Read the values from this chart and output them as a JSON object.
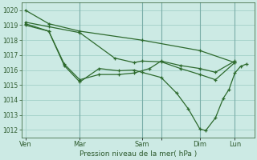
{
  "bg_color": "#cceae4",
  "grid_color": "#a8d4cc",
  "line_color": "#2d6a2d",
  "xlabel": "Pression niveau de la mer( hPa )",
  "ylim": [
    1011.5,
    1020.5
  ],
  "yticks": [
    1012,
    1013,
    1014,
    1015,
    1016,
    1017,
    1018,
    1019,
    1020
  ],
  "xlim": [
    0,
    120
  ],
  "xtick_positions": [
    2,
    30,
    62,
    72,
    92,
    110
  ],
  "xtick_labels": [
    "Ven",
    "Mar",
    "Sam",
    "",
    "Dim",
    "Lun"
  ],
  "vlines": [
    30,
    62,
    72,
    92,
    110
  ],
  "series": [
    [
      2,
      1020.0,
      14,
      1019.1,
      30,
      1018.6,
      62,
      1018.0,
      92,
      1017.3,
      110,
      1016.5
    ],
    [
      2,
      1019.2,
      14,
      1018.9,
      30,
      1018.5,
      48,
      1016.8,
      58,
      1016.5,
      62,
      1016.6,
      72,
      1016.55,
      82,
      1016.1,
      92,
      1015.7,
      100,
      1015.35,
      110,
      1016.5
    ],
    [
      2,
      1019.0,
      14,
      1018.6,
      22,
      1016.4,
      30,
      1015.35,
      40,
      1015.7,
      50,
      1015.7,
      58,
      1015.8,
      66,
      1016.1,
      72,
      1016.6,
      82,
      1016.3,
      92,
      1016.1,
      100,
      1015.85,
      110,
      1016.6
    ],
    [
      2,
      1019.1,
      14,
      1018.6,
      22,
      1016.3,
      30,
      1015.2,
      40,
      1016.1,
      50,
      1015.95,
      58,
      1016.0,
      62,
      1015.85,
      72,
      1015.5,
      80,
      1014.45,
      86,
      1013.4,
      92,
      1012.05,
      95,
      1011.95,
      100,
      1012.8,
      104,
      1014.1,
      107,
      1014.7,
      110,
      1015.8,
      113,
      1016.25,
      116,
      1016.4
    ]
  ]
}
